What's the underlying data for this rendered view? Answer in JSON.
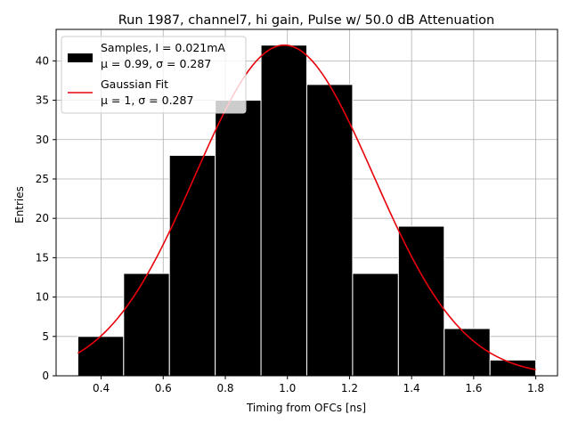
{
  "chart_data": {
    "type": "bar",
    "title": "Run 1987, channel7, hi gain, Pulse w/ 50.0 dB Attenuation",
    "xlabel": "Timing from OFCs [ns]",
    "ylabel": "Entries",
    "xlim": [
      0.255,
      1.87
    ],
    "ylim": [
      0,
      44
    ],
    "xticks": [
      0.4,
      0.6,
      0.8,
      1.0,
      1.2,
      1.4,
      1.6,
      1.8
    ],
    "xtick_labels": [
      "0.4",
      "0.6",
      "0.8",
      "1.0",
      "1.2",
      "1.4",
      "1.6",
      "1.8"
    ],
    "yticks": [
      0,
      5,
      10,
      15,
      20,
      25,
      30,
      35,
      40
    ],
    "ytick_labels": [
      "0",
      "5",
      "10",
      "15",
      "20",
      "25",
      "30",
      "35",
      "40"
    ],
    "grid": true,
    "legend_position": "upper-left",
    "histogram": {
      "name": "Samples",
      "bin_edges": [
        0.325,
        0.4725,
        0.62,
        0.7675,
        0.915,
        1.0625,
        1.21,
        1.3575,
        1.505,
        1.6525,
        1.8
      ],
      "counts": [
        5,
        13,
        28,
        35,
        42,
        37,
        13,
        19,
        6,
        2
      ],
      "color": "#000000",
      "edge_color": "#ffffff"
    },
    "fit": {
      "name": "Gaussian Fit",
      "type": "gaussian",
      "amplitude": 42,
      "mean": 0.99,
      "sigma": 0.287,
      "x_range": [
        0.325,
        1.8
      ],
      "color": "#e8000b"
    },
    "legend": [
      {
        "kind": "patch",
        "color": "#000000",
        "line1": "Samples, I = 0.021mA",
        "line2": "μ = 0.99, σ = 0.287"
      },
      {
        "kind": "line",
        "color": "#e8000b",
        "line1": "Gaussian Fit",
        "line2": "μ = 1, σ = 0.287"
      }
    ]
  }
}
